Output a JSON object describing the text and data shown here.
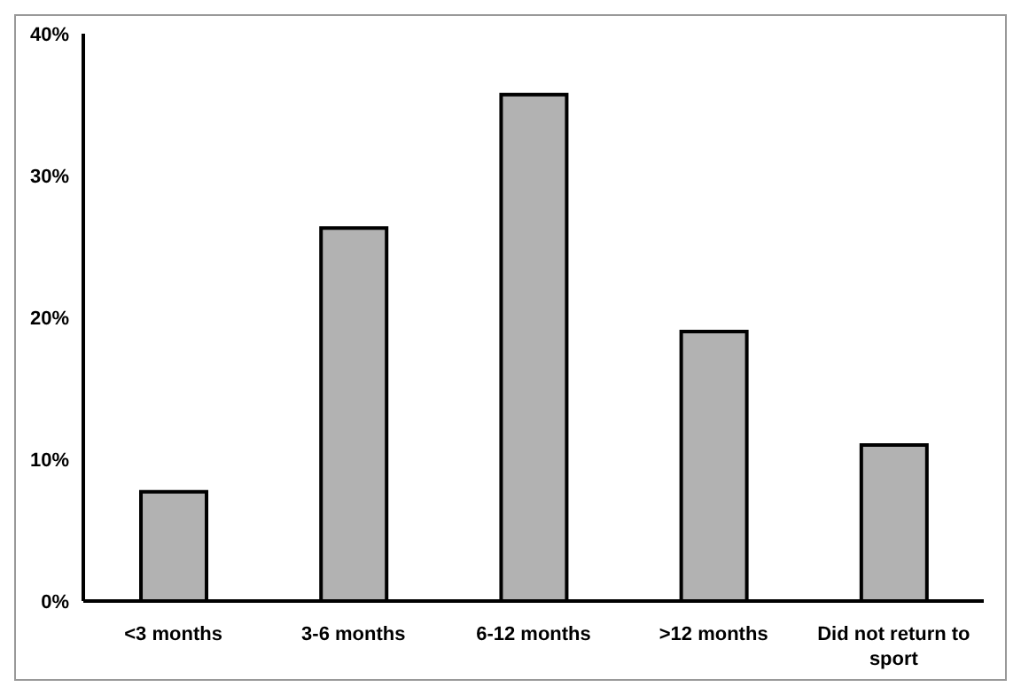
{
  "chart_data": {
    "type": "bar",
    "categories": [
      "<3 months",
      "3-6 months",
      "6-12 months",
      ">12 months",
      "Did not return to sport"
    ],
    "values": [
      7.7,
      26.3,
      35.7,
      19.0,
      11.0
    ],
    "color": "#b2b2b2",
    "ylim": [
      0,
      40
    ],
    "yticks": [
      {
        "value": 0,
        "label": "0%"
      },
      {
        "value": 10,
        "label": "10%"
      },
      {
        "value": 20,
        "label": "20%"
      },
      {
        "value": 30,
        "label": "30%"
      },
      {
        "value": 40,
        "label": "40%"
      }
    ],
    "grid": false
  }
}
